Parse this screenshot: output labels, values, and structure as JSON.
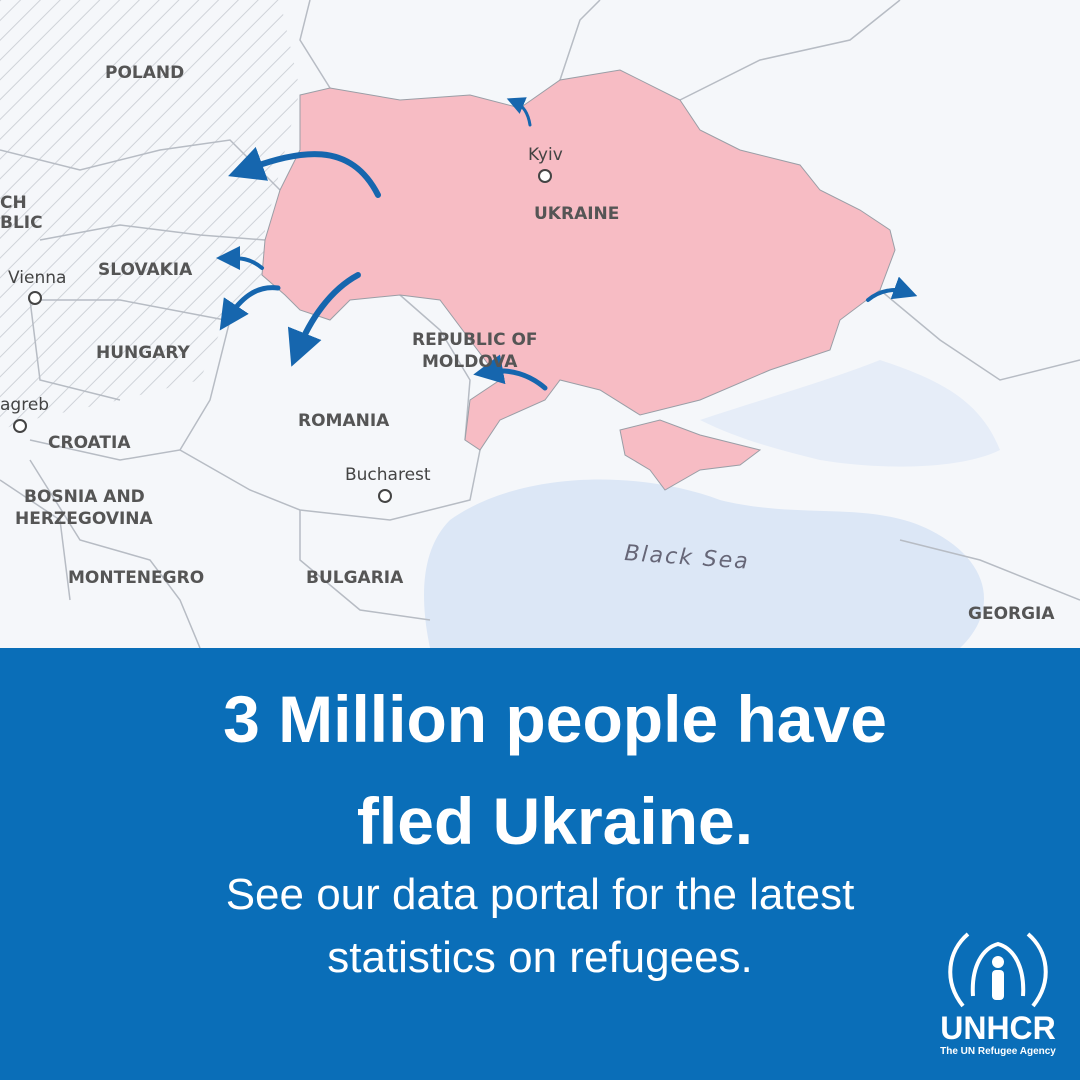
{
  "map": {
    "labels": {
      "poland": "POLAND",
      "czech_a": "CH",
      "czech_b": "BLIC",
      "vienna": "Vienna",
      "slovakia": "SLOVAKIA",
      "hungary": "HUNGARY",
      "zagreb": "agreb",
      "croatia": "CROATIA",
      "bosnia_a": "BOSNIA AND",
      "bosnia_b": "HERZEGOVINA",
      "montenegro": "MONTENEGRO",
      "romania": "ROMANIA",
      "bucharest": "Bucharest",
      "bulgaria": "BULGARIA",
      "moldova_a": "REPUBLIC OF",
      "moldova_b": "MOLDOVA",
      "kyiv": "Kyiv",
      "ukraine": "UKRAINE",
      "black_sea": "Black Sea",
      "georgia": "GEORGIA"
    }
  },
  "panel": {
    "headline_a": "3 Million people have",
    "headline_b": "fled Ukraine.",
    "subtext_a": "See our data portal for the latest",
    "subtext_b": "statistics on refugees."
  },
  "logo": {
    "name": "UNHCR",
    "tagline": "The UN Refugee Agency"
  }
}
